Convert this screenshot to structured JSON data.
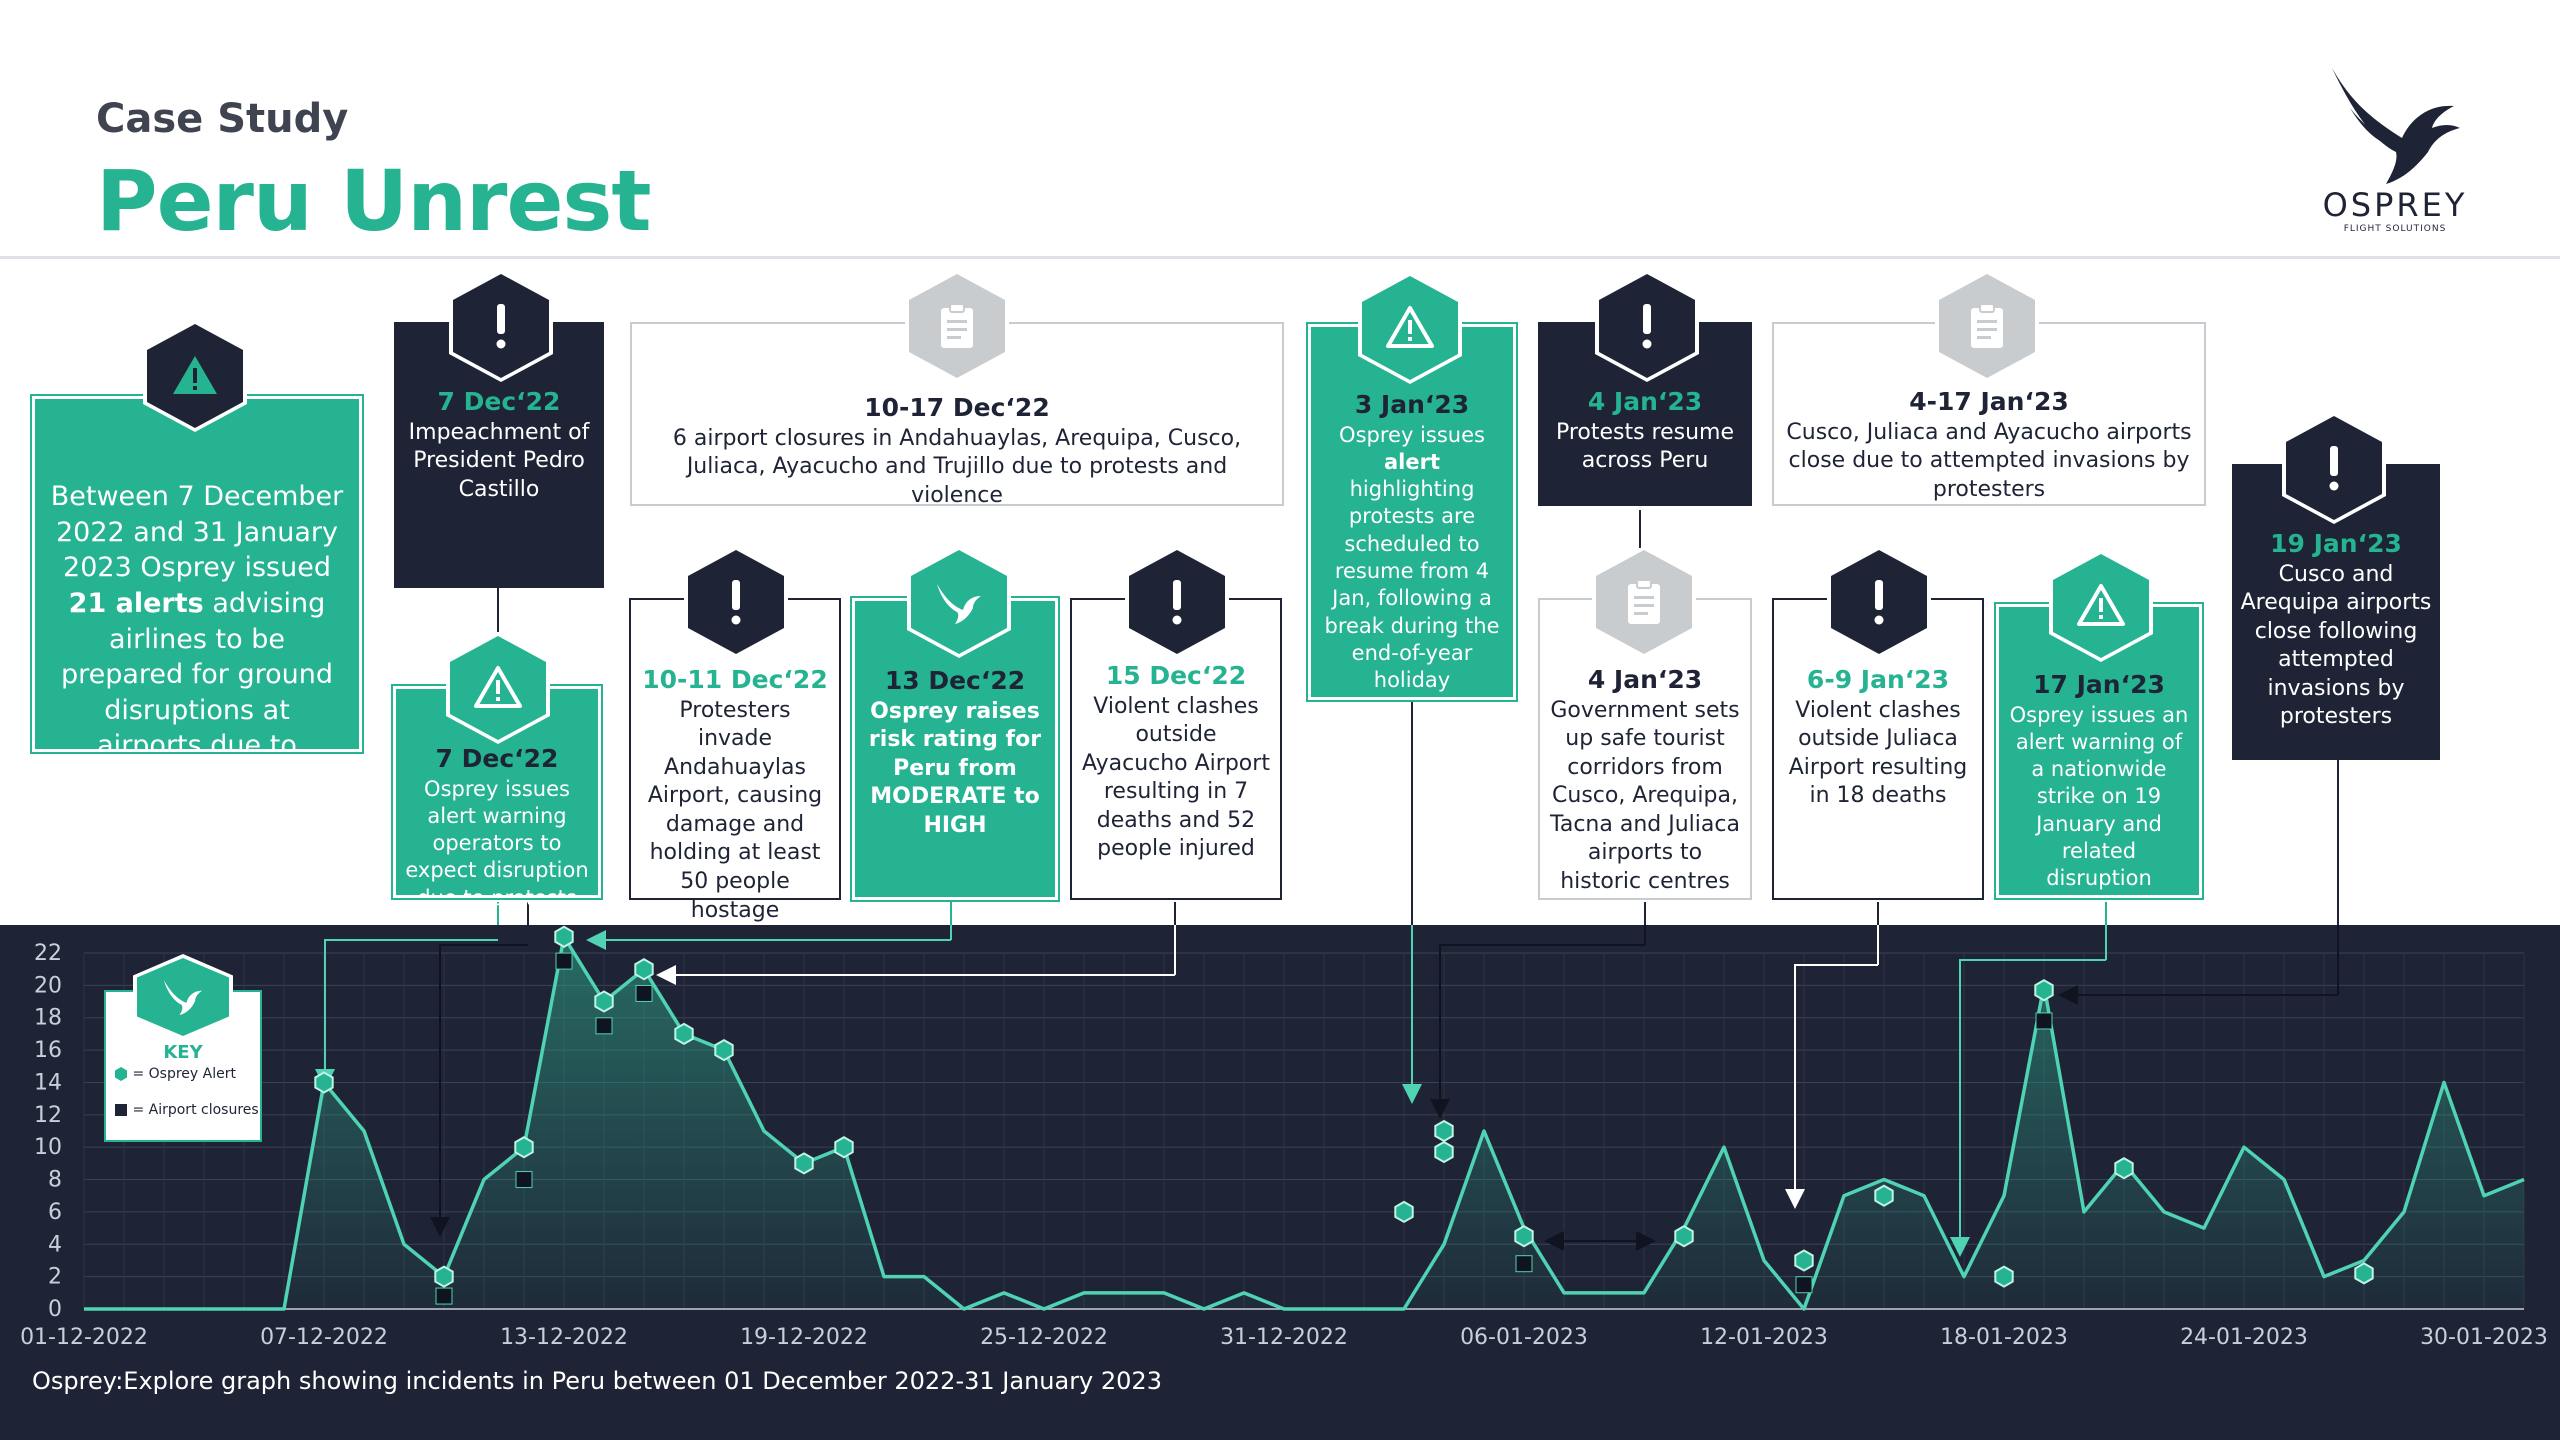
{
  "header": {
    "kicker": "Case Study",
    "title": "Peru Unrest",
    "logo_text": "OSPREY",
    "logo_sub": "FLIGHT SOLUTIONS"
  },
  "summary": {
    "t1": "Between 7 December 2022 and 31 January 2023 Osprey issued ",
    "bold": "21 alerts",
    "t2": " advising airlines to be prepared for ground disruptions at airports due to protests"
  },
  "events": {
    "e1": {
      "date": "7 Dec‘22",
      "text": "Impeachment of President Pedro Castillo"
    },
    "e2": {
      "date": "7 Dec‘22",
      "text": "Osprey issues alert warning operators to expect disruption due to protests"
    },
    "e3": {
      "date": "10-17 Dec‘22",
      "text": "6 airport closures in Andahuaylas, Arequipa, Cusco, Juliaca, Ayacucho and Trujillo due to protests and violence"
    },
    "e4": {
      "date": "10-11 Dec‘22",
      "text": "Protesters invade Andahuaylas Airport, causing damage and holding at least 50 people hostage"
    },
    "e5": {
      "date": "13 Dec‘22",
      "text": "Osprey raises risk rating for Peru from MODERATE to HIGH"
    },
    "e6": {
      "date": "15 Dec‘22",
      "text": "Violent clashes outside Ayacucho Airport resulting in 7 deaths and 52 people injured"
    },
    "e7": {
      "date": "3 Jan‘23",
      "t1": "Osprey issues ",
      "bold": "alert",
      "t2": " highlighting protests are scheduled to resume from 4 Jan, following a break during the end-of-year holiday"
    },
    "e8": {
      "date": "4 Jan‘23",
      "text": "Protests resume across Peru"
    },
    "e9": {
      "date": "4 Jan‘23",
      "text": "Government sets up safe tourist corridors from Cusco, Arequipa, Tacna and Juliaca airports to historic centres"
    },
    "e10": {
      "date": "4-17 Jan‘23",
      "text": "Cusco, Juliaca and Ayacucho airports close due to attempted invasions by protesters"
    },
    "e11": {
      "date": "6-9 Jan‘23",
      "text": "Violent clashes outside Juliaca Airport resulting in 18 deaths"
    },
    "e12": {
      "date": "17 Jan‘23",
      "text": "Osprey issues an alert warning of a nationwide strike on 19 January and related disruption"
    },
    "e13": {
      "date": "19 Jan‘23",
      "text": "Cusco and Arequipa airports close following attempted invasions by protesters"
    }
  },
  "key": {
    "title": "KEY",
    "alert_label": "= Osprey Alert",
    "closure_label": "= Airport closures"
  },
  "footer": {
    "caption": "Osprey:Explore graph showing incidents in Peru between 01 December 2022-31 January 2023"
  },
  "colors": {
    "navy": "#1e2435",
    "teal": "#25b391",
    "line": "#4fd3b3",
    "gray_icon": "#c9cccf"
  },
  "icons": {
    "alert": "exclamation-icon",
    "warning": "warning-triangle-icon",
    "closure": "clipboard-icon",
    "risk": "osprey-bird-icon"
  },
  "chart_data": {
    "type": "line",
    "title": "",
    "xlabel": "",
    "ylabel": "",
    "ylim": [
      0,
      22
    ],
    "yticks": [
      0,
      2,
      4,
      6,
      8,
      10,
      12,
      14,
      16,
      18,
      20,
      22
    ],
    "xtick_labels": [
      "01-12-2022",
      "07-12-2022",
      "13-12-2022",
      "19-12-2022",
      "25-12-2022",
      "31-12-2022",
      "06-01-2023",
      "12-01-2023",
      "18-01-2023",
      "24-01-2023",
      "30-01-2023"
    ],
    "grid": true,
    "dates": [
      "2022-12-01",
      "2022-12-02",
      "2022-12-03",
      "2022-12-04",
      "2022-12-05",
      "2022-12-06",
      "2022-12-07",
      "2022-12-08",
      "2022-12-09",
      "2022-12-10",
      "2022-12-11",
      "2022-12-12",
      "2022-12-13",
      "2022-12-14",
      "2022-12-15",
      "2022-12-16",
      "2022-12-17",
      "2022-12-18",
      "2022-12-19",
      "2022-12-20",
      "2022-12-21",
      "2022-12-22",
      "2022-12-23",
      "2022-12-24",
      "2022-12-25",
      "2022-12-26",
      "2022-12-27",
      "2022-12-28",
      "2022-12-29",
      "2022-12-30",
      "2022-12-31",
      "2023-01-01",
      "2023-01-02",
      "2023-01-03",
      "2023-01-04",
      "2023-01-05",
      "2023-01-06",
      "2023-01-07",
      "2023-01-08",
      "2023-01-09",
      "2023-01-10",
      "2023-01-11",
      "2023-01-12",
      "2023-01-13",
      "2023-01-14",
      "2023-01-15",
      "2023-01-16",
      "2023-01-17",
      "2023-01-18",
      "2023-01-19",
      "2023-01-20",
      "2023-01-21",
      "2023-01-22",
      "2023-01-23",
      "2023-01-24",
      "2023-01-25",
      "2023-01-26",
      "2023-01-27",
      "2023-01-28",
      "2023-01-29",
      "2023-01-30",
      "2023-01-31"
    ],
    "series": [
      {
        "values": [
          0,
          0,
          0,
          0,
          0,
          0,
          14,
          11,
          4,
          2,
          8,
          10,
          23,
          19,
          21,
          17,
          16,
          11,
          9,
          10,
          2,
          2,
          0,
          1,
          0,
          1,
          1,
          1,
          0,
          1,
          0,
          0,
          0,
          0,
          4,
          11,
          5,
          1,
          1,
          1,
          5,
          10,
          3,
          0,
          7,
          8,
          7,
          2,
          7,
          20,
          6,
          9,
          6,
          5,
          10,
          8,
          2,
          3,
          6,
          14,
          7,
          8
        ]
      }
    ],
    "alert_points": [
      {
        "date": "2022-12-07",
        "value": 14
      },
      {
        "date": "2022-12-10",
        "value": 2
      },
      {
        "date": "2022-12-12",
        "value": 10
      },
      {
        "date": "2022-12-13",
        "value": 23
      },
      {
        "date": "2022-12-14",
        "value": 19
      },
      {
        "date": "2022-12-15",
        "value": 21
      },
      {
        "date": "2022-12-16",
        "value": 17
      },
      {
        "date": "2022-12-17",
        "value": 16
      },
      {
        "date": "2022-12-19",
        "value": 9
      },
      {
        "date": "2022-12-20",
        "value": 10
      },
      {
        "date": "2023-01-03",
        "value": 6
      },
      {
        "date": "2023-01-04",
        "value": 11
      },
      {
        "date": "2023-01-04",
        "value": 9.7
      },
      {
        "date": "2023-01-06",
        "value": 4.5
      },
      {
        "date": "2023-01-10",
        "value": 4.5
      },
      {
        "date": "2023-01-13",
        "value": 3
      },
      {
        "date": "2023-01-15",
        "value": 7
      },
      {
        "date": "2023-01-18",
        "value": 2
      },
      {
        "date": "2023-01-19",
        "value": 19.7
      },
      {
        "date": "2023-01-21",
        "value": 8.7
      },
      {
        "date": "2023-01-27",
        "value": 2.2
      }
    ],
    "closure_points": [
      {
        "date": "2022-12-10",
        "value": 0.8
      },
      {
        "date": "2022-12-12",
        "value": 8
      },
      {
        "date": "2022-12-13",
        "value": 21.5
      },
      {
        "date": "2022-12-14",
        "value": 17.5
      },
      {
        "date": "2022-12-15",
        "value": 19.5
      },
      {
        "date": "2023-01-06",
        "value": 2.8
      },
      {
        "date": "2023-01-13",
        "value": 1.5
      },
      {
        "date": "2023-01-19",
        "value": 17.8
      }
    ]
  }
}
